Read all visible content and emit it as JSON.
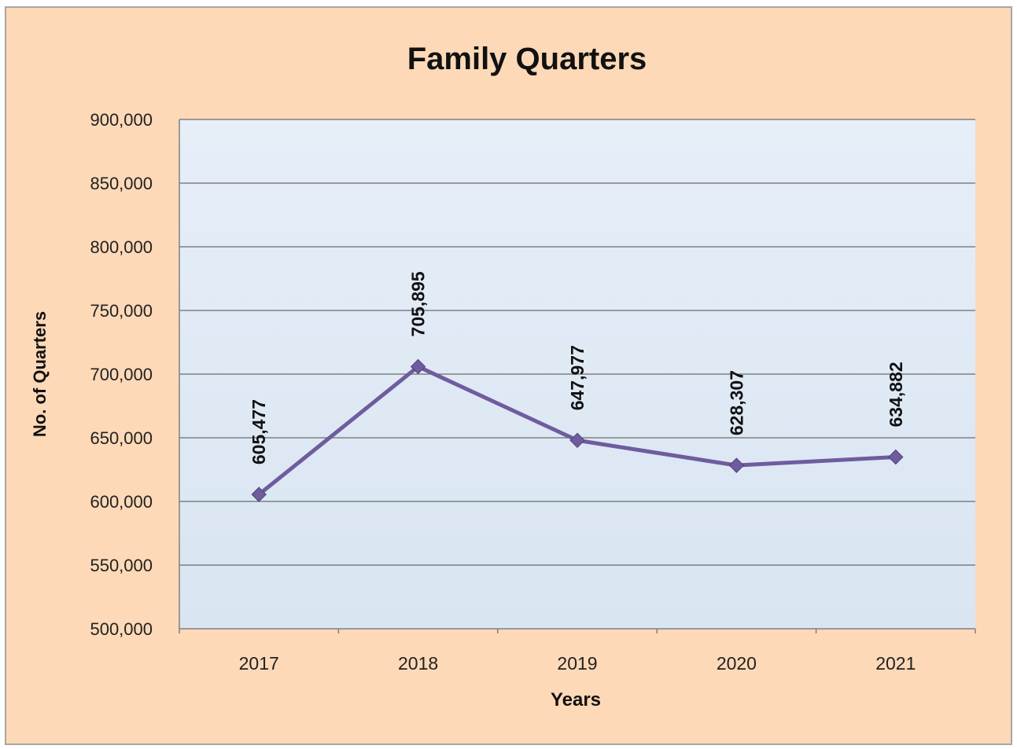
{
  "chart_data": {
    "type": "line",
    "title": "Family Quarters",
    "xlabel": "Years",
    "ylabel": "No. of Quarters",
    "categories": [
      "2017",
      "2018",
      "2019",
      "2020",
      "2021"
    ],
    "series": [
      {
        "values": [
          605477,
          705895,
          647977,
          628307,
          634882
        ],
        "color": "#6f5c9e"
      }
    ],
    "data_labels": [
      "605,477",
      "705,895",
      "647,977",
      "628,307",
      "634,882"
    ],
    "ylim": [
      500000,
      900000
    ],
    "yticks": [
      500000,
      550000,
      600000,
      650000,
      700000,
      750000,
      800000,
      850000,
      900000
    ],
    "ytick_labels": [
      "500,000",
      "550,000",
      "600,000",
      "650,000",
      "700,000",
      "750,000",
      "800,000",
      "850,000",
      "900,000"
    ],
    "grid": true,
    "legend": "none",
    "colors": {
      "background": "#fdd9b7",
      "plot_area": "#dde8f4",
      "gridline": "#6b6b6b",
      "line": "#6f5c9e"
    }
  }
}
